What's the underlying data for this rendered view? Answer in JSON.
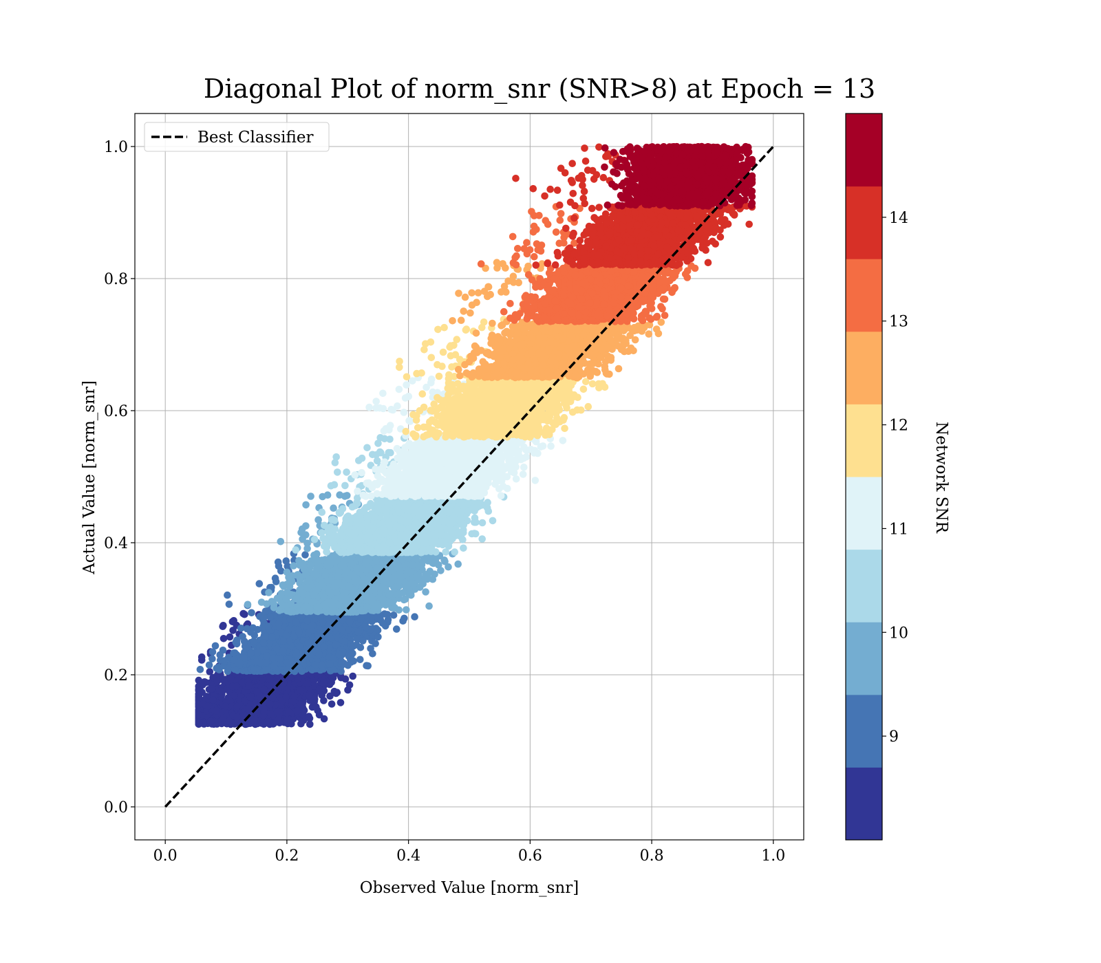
{
  "chart_data": {
    "type": "scatter",
    "title": "Diagonal Plot of norm_snr (SNR>8) at Epoch = 13",
    "xlabel": "Observed Value [norm_snr]",
    "ylabel": "Actual Value [norm_snr]",
    "xlim": [
      -0.05,
      1.05
    ],
    "ylim": [
      -0.05,
      1.05
    ],
    "x_ticks": [
      "0.0",
      "0.2",
      "0.4",
      "0.6",
      "0.8",
      "1.0"
    ],
    "y_ticks": [
      "0.0",
      "0.2",
      "0.4",
      "0.6",
      "0.8",
      "1.0"
    ],
    "grid": true,
    "legend": {
      "position": "top-left",
      "entries": [
        "Best Classifier"
      ]
    },
    "reference_line": {
      "name": "Best Classifier",
      "x": [
        0.0,
        1.0
      ],
      "y": [
        0.0,
        1.0
      ],
      "style": "dashed",
      "color": "#000000"
    },
    "colorbar": {
      "label": "Network SNR",
      "range": [
        8.0,
        15.0
      ],
      "tick_labels": [
        "9",
        "10",
        "11",
        "12",
        "13",
        "14"
      ],
      "bins": [
        {
          "min": 8.0,
          "max": 8.7,
          "color": "#313695",
          "y_min": 0.125,
          "y_max": 0.205
        },
        {
          "min": 8.7,
          "max": 9.4,
          "color": "#4575b4",
          "y_min": 0.205,
          "y_max": 0.295
        },
        {
          "min": 9.4,
          "max": 10.1,
          "color": "#74add1",
          "y_min": 0.295,
          "y_max": 0.385
        },
        {
          "min": 10.1,
          "max": 10.8,
          "color": "#abd9e9",
          "y_min": 0.385,
          "y_max": 0.47
        },
        {
          "min": 10.8,
          "max": 11.5,
          "color": "#e0f3f8",
          "y_min": 0.47,
          "y_max": 0.56
        },
        {
          "min": 11.5,
          "max": 12.2,
          "color": "#fee090",
          "y_min": 0.56,
          "y_max": 0.65
        },
        {
          "min": 12.2,
          "max": 12.9,
          "color": "#fdae61",
          "y_min": 0.65,
          "y_max": 0.735
        },
        {
          "min": 12.9,
          "max": 13.6,
          "color": "#f46d43",
          "y_min": 0.735,
          "y_max": 0.82
        },
        {
          "min": 13.6,
          "max": 14.3,
          "color": "#d73027",
          "y_min": 0.82,
          "y_max": 0.91
        },
        {
          "min": 14.3,
          "max": 15.0,
          "color": "#a50026",
          "y_min": 0.91,
          "y_max": 1.0
        }
      ]
    }
  }
}
